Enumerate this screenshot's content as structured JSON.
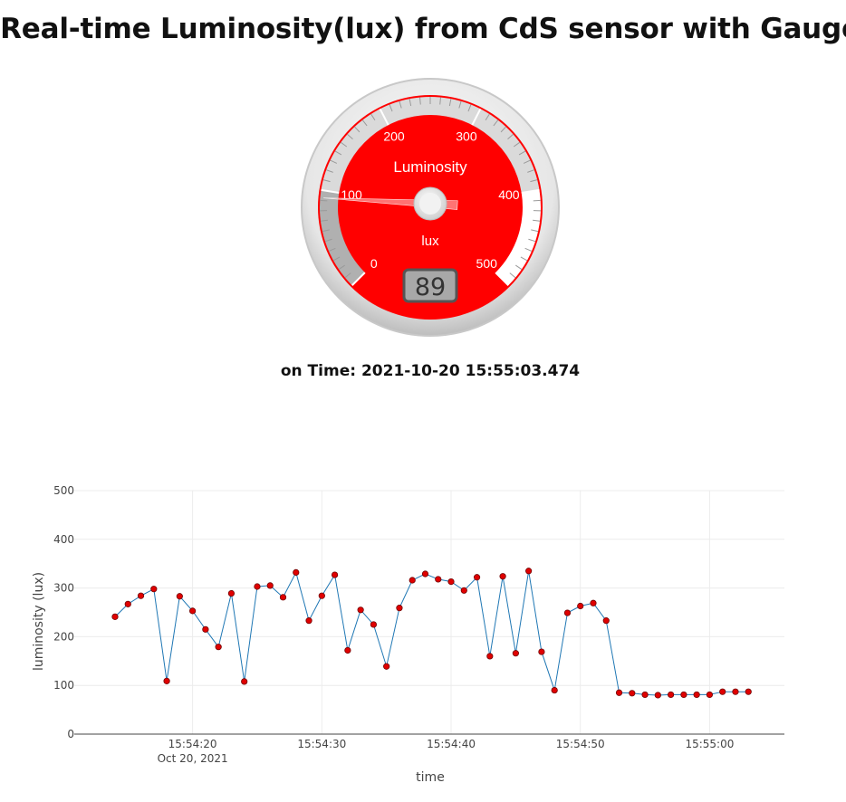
{
  "page": {
    "title": "Real-time Luminosity(lux) from CdS sensor with Gauge",
    "time_prefix": "on Time:",
    "time_value": "2021-10-20 15:55:03.474"
  },
  "gauge": {
    "title": "Luminosity",
    "units": "lux",
    "min": 0,
    "max": 500,
    "value": 89,
    "value_text": "89",
    "major_ticks": [
      "0",
      "100",
      "200",
      "300",
      "400",
      "500"
    ],
    "colors": {
      "plate": "#ff0000",
      "highlight_low": "#b0b0b0",
      "highlight_mid": "#dadada",
      "highlight_high": "#ffffff",
      "needle": "#ff6060"
    }
  },
  "chart_data": {
    "type": "line",
    "xlabel": "time",
    "ylabel": "luminosity (lux)",
    "ylim": [
      0,
      500
    ],
    "yticks": [
      0,
      100,
      200,
      300,
      400,
      500
    ],
    "xticks": [
      "15:54:20",
      "15:54:30",
      "15:54:40",
      "15:54:50",
      "15:55:00"
    ],
    "xtick_secs": [
      20,
      30,
      40,
      50,
      60
    ],
    "x_date_label": "Oct 20, 2021",
    "x_start": "15:54:14",
    "x_end": "15:55:03",
    "grid": true,
    "line_color": "#1f77b4",
    "marker_color": "#e00000",
    "series": [
      {
        "x": [
          "15:54:14",
          "15:54:15",
          "15:54:16",
          "15:54:17",
          "15:54:18",
          "15:54:19",
          "15:54:20",
          "15:54:21",
          "15:54:22",
          "15:54:23",
          "15:54:24",
          "15:54:25",
          "15:54:26",
          "15:54:27",
          "15:54:28",
          "15:54:29",
          "15:54:30",
          "15:54:31",
          "15:54:32",
          "15:54:33",
          "15:54:34",
          "15:54:35",
          "15:54:36",
          "15:54:37",
          "15:54:38",
          "15:54:39",
          "15:54:40",
          "15:54:41",
          "15:54:42",
          "15:54:43",
          "15:54:44",
          "15:54:45",
          "15:54:46",
          "15:54:47",
          "15:54:48",
          "15:54:49",
          "15:54:50",
          "15:54:51",
          "15:54:52",
          "15:54:53",
          "15:54:54",
          "15:54:55",
          "15:54:56",
          "15:54:57",
          "15:54:58",
          "15:54:59",
          "15:55:00",
          "15:55:01",
          "15:55:02",
          "15:55:03"
        ],
        "values": [
          241,
          267,
          284,
          298,
          109,
          283,
          253,
          215,
          179,
          289,
          108,
          303,
          305,
          281,
          332,
          233,
          284,
          327,
          172,
          255,
          225,
          139,
          259,
          316,
          329,
          318,
          313,
          295,
          322,
          160,
          324,
          166,
          335,
          169,
          90,
          249,
          263,
          269,
          233,
          85,
          84,
          81,
          80,
          81,
          81,
          81,
          81,
          87,
          87,
          87
        ]
      }
    ]
  }
}
